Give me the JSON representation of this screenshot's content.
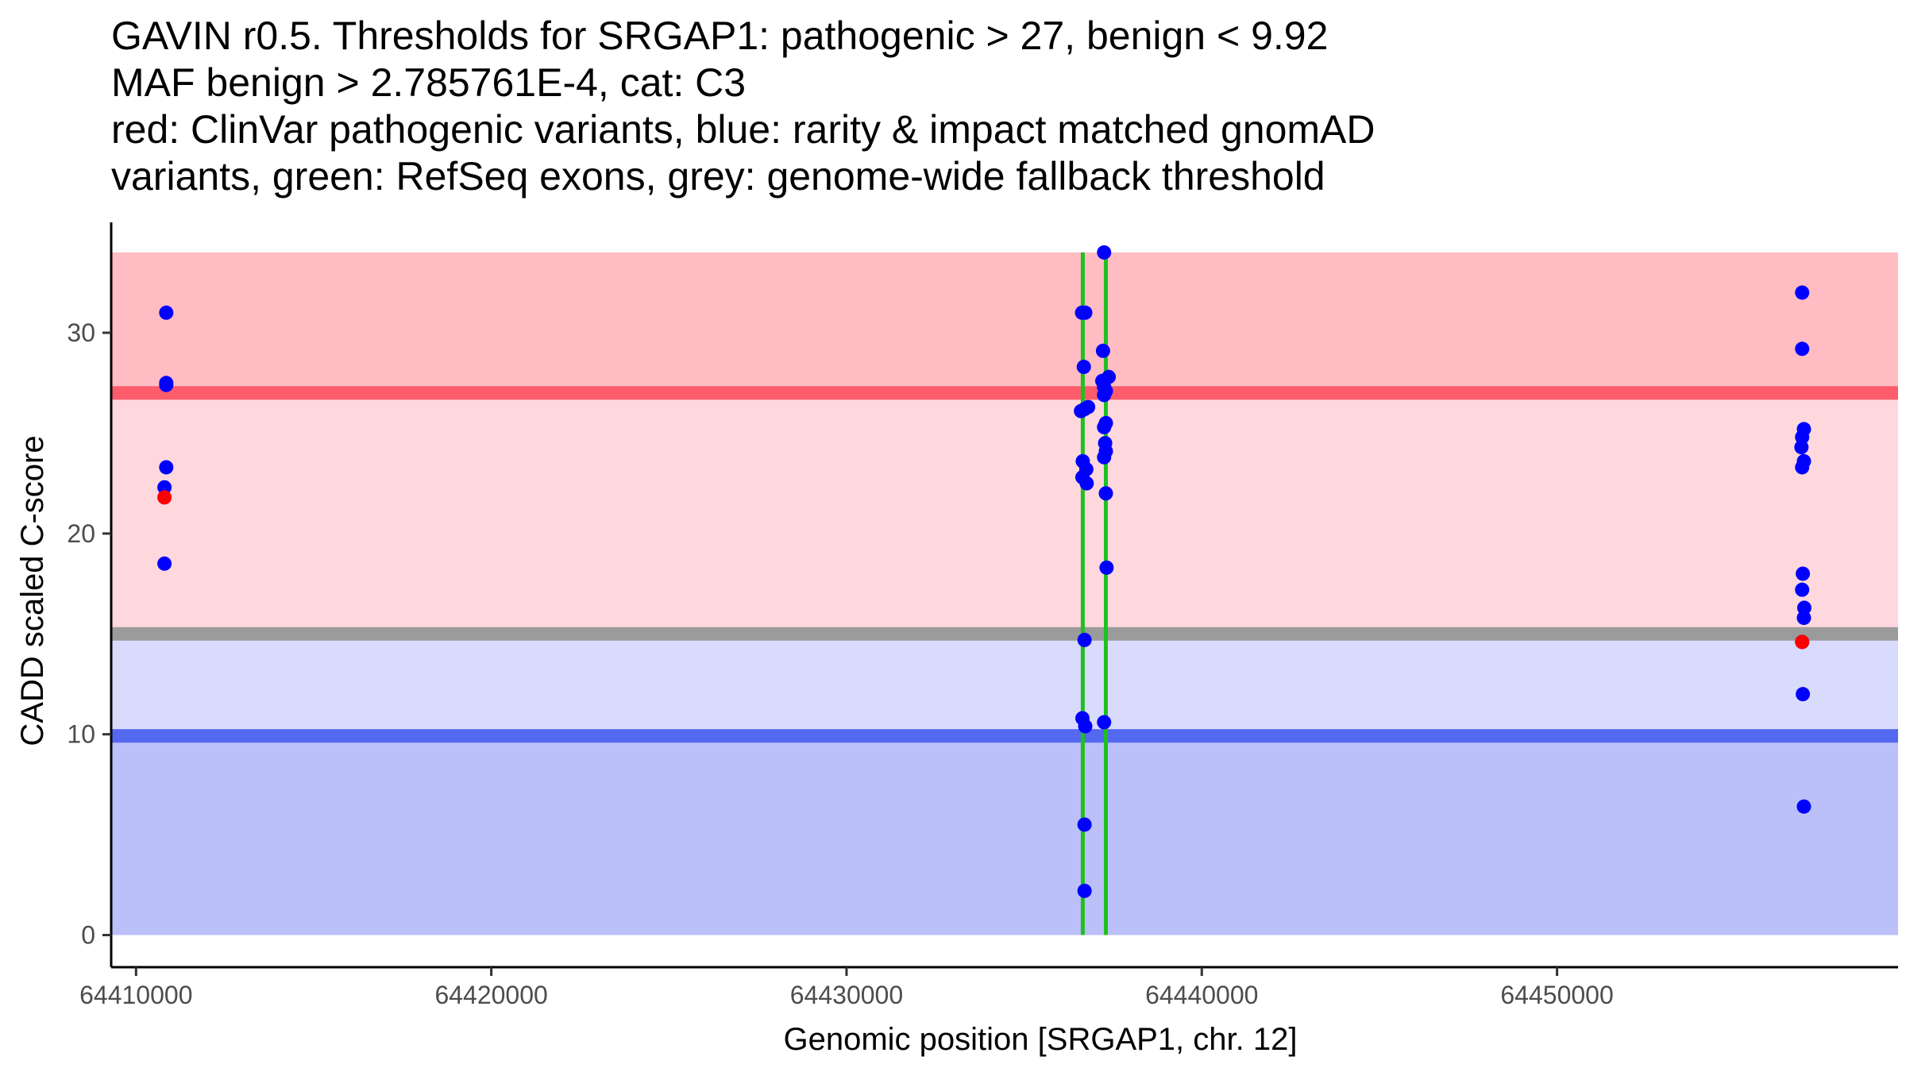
{
  "chart_data": {
    "type": "scatter",
    "title_lines": [
      "GAVIN r0.5. Thresholds for SRGAP1: pathogenic > 27, benign < 9.92",
      "MAF benign > 2.785761E-4, cat: C3",
      "red: ClinVar pathogenic variants, blue: rarity & impact matched gnomAD",
      "variants, green: RefSeq exons, grey: genome-wide fallback threshold"
    ],
    "xlabel": "Genomic position [SRGAP1, chr. 12]",
    "ylabel": "CADD scaled C-score",
    "xlim": [
      64409300,
      64459600
    ],
    "ylim": [
      -1.6,
      35.5
    ],
    "x_ticks": [
      64410000,
      64420000,
      64430000,
      64440000,
      64450000
    ],
    "x_tick_labels": [
      "64410000",
      "64420000",
      "64430000",
      "64440000",
      "64450000"
    ],
    "y_ticks": [
      0,
      10,
      20,
      30
    ],
    "y_tick_labels": [
      "0",
      "10",
      "20",
      "30"
    ],
    "grid": false,
    "bands": [
      {
        "name": "benign-zone-low",
        "y0": 0,
        "y1": 9.92,
        "color": "#bcc0f9"
      },
      {
        "name": "benign-zone-high",
        "y0": 9.92,
        "y1": 15,
        "color": "#d9dbfc"
      },
      {
        "name": "fallback-pathogenic-zone",
        "y0": 15,
        "y1": 27,
        "color": "#ffd8de"
      },
      {
        "name": "pathogenic-zone",
        "y0": 27,
        "y1": 34,
        "color": "#ffbcc3"
      }
    ],
    "threshold_lines": [
      {
        "name": "fallback-threshold-line",
        "y": 15,
        "color": "#9b9b9b"
      },
      {
        "name": "benign-threshold-line",
        "y": 9.92,
        "color": "#5468f0"
      },
      {
        "name": "pathogenic-threshold-line",
        "y": 27,
        "color": "#fe5b6b"
      }
    ],
    "exons": [
      {
        "x": 64436650,
        "y0": 0,
        "y1": 34,
        "color": "#1fc01f"
      },
      {
        "x": 64437300,
        "y0": 0,
        "y1": 34,
        "color": "#1fc01f"
      }
    ],
    "series": [
      {
        "name": "ClinVar pathogenic variants",
        "color": "#ff0000",
        "points": [
          {
            "x": 64410800,
            "y": 21.8
          },
          {
            "x": 64456900,
            "y": 14.6
          }
        ]
      },
      {
        "name": "rarity & impact matched gnomAD variants",
        "color": "#0000ff",
        "points": [
          {
            "x": 64410850,
            "y": 31.0
          },
          {
            "x": 64410850,
            "y": 27.5
          },
          {
            "x": 64410850,
            "y": 27.4
          },
          {
            "x": 64410850,
            "y": 23.3
          },
          {
            "x": 64410800,
            "y": 22.3
          },
          {
            "x": 64410800,
            "y": 18.5
          },
          {
            "x": 64436630,
            "y": 31.0
          },
          {
            "x": 64436720,
            "y": 31.0
          },
          {
            "x": 64436680,
            "y": 28.3
          },
          {
            "x": 64436600,
            "y": 26.1
          },
          {
            "x": 64436700,
            "y": 26.2
          },
          {
            "x": 64436800,
            "y": 26.3
          },
          {
            "x": 64436650,
            "y": 23.6
          },
          {
            "x": 64436750,
            "y": 23.2
          },
          {
            "x": 64436640,
            "y": 22.8
          },
          {
            "x": 64436760,
            "y": 22.5
          },
          {
            "x": 64436700,
            "y": 14.7
          },
          {
            "x": 64436640,
            "y": 10.8
          },
          {
            "x": 64436720,
            "y": 10.4
          },
          {
            "x": 64436700,
            "y": 5.5
          },
          {
            "x": 64436700,
            "y": 2.2
          },
          {
            "x": 64437250,
            "y": 34.0
          },
          {
            "x": 64437220,
            "y": 29.1
          },
          {
            "x": 64437200,
            "y": 27.6
          },
          {
            "x": 64437380,
            "y": 27.8
          },
          {
            "x": 64437250,
            "y": 27.3
          },
          {
            "x": 64437300,
            "y": 27.1
          },
          {
            "x": 64437250,
            "y": 26.9
          },
          {
            "x": 64437300,
            "y": 25.5
          },
          {
            "x": 64437250,
            "y": 25.3
          },
          {
            "x": 64437280,
            "y": 24.5
          },
          {
            "x": 64437300,
            "y": 24.1
          },
          {
            "x": 64437250,
            "y": 23.8
          },
          {
            "x": 64437300,
            "y": 22.0
          },
          {
            "x": 64437320,
            "y": 18.3
          },
          {
            "x": 64437250,
            "y": 10.6
          },
          {
            "x": 64456900,
            "y": 32.0
          },
          {
            "x": 64456900,
            "y": 29.2
          },
          {
            "x": 64456950,
            "y": 25.2
          },
          {
            "x": 64456900,
            "y": 24.8
          },
          {
            "x": 64456880,
            "y": 24.3
          },
          {
            "x": 64456950,
            "y": 23.6
          },
          {
            "x": 64456900,
            "y": 23.3
          },
          {
            "x": 64456920,
            "y": 18.0
          },
          {
            "x": 64456900,
            "y": 17.2
          },
          {
            "x": 64456960,
            "y": 16.3
          },
          {
            "x": 64456950,
            "y": 15.8
          },
          {
            "x": 64456900,
            "y": 14.6
          },
          {
            "x": 64456920,
            "y": 12.0
          },
          {
            "x": 64456950,
            "y": 6.4
          }
        ]
      }
    ]
  }
}
